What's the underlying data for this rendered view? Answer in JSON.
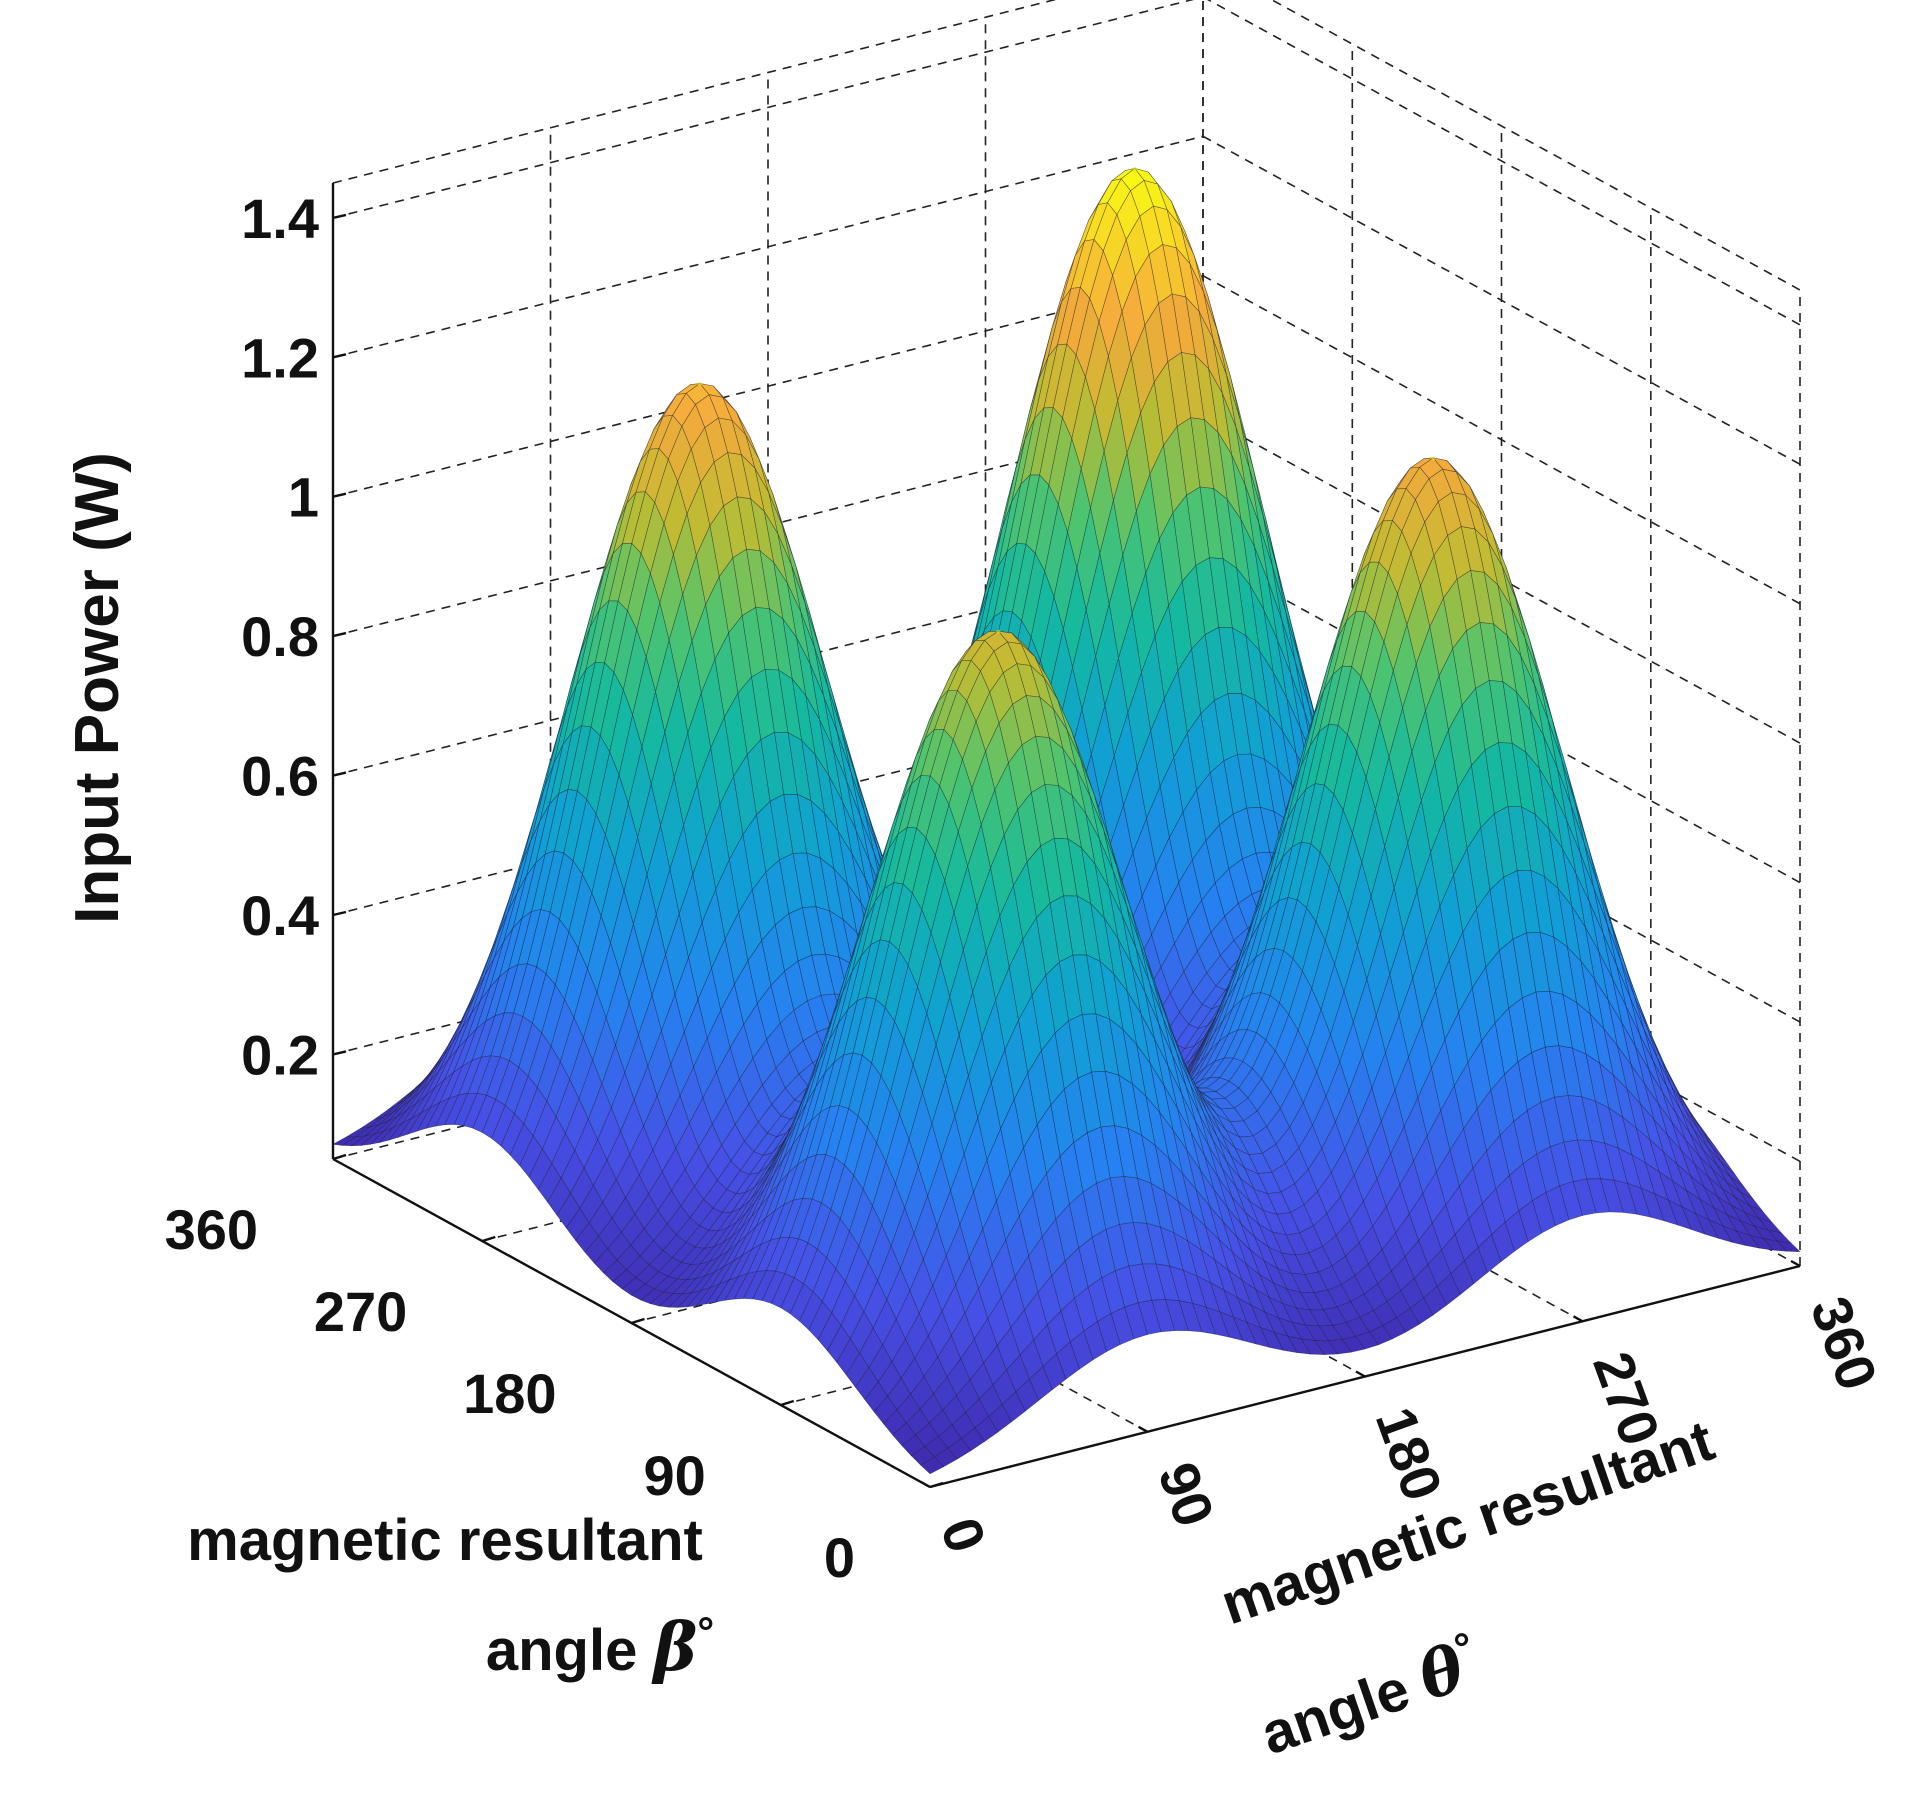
{
  "chart_data": {
    "type": "surface",
    "title": "",
    "zlabel": "Input Power (W)",
    "xlabel": {
      "line1": "magnetic resultant",
      "line2_prefix": "angle ",
      "line2_symbol": "θ",
      "line2_suffix": "°"
    },
    "ylabel": {
      "line1": "magnetic resultant",
      "line2_prefix": "angle ",
      "line2_symbol": "β",
      "line2_suffix": "°"
    },
    "x_ticks": [
      "0",
      "90",
      "180",
      "270",
      "360"
    ],
    "y_ticks": [
      "0",
      "90",
      "180",
      "270",
      "360"
    ],
    "z_ticks": [
      "0.2",
      "0.4",
      "0.6",
      "0.8",
      "1",
      "1.2",
      "1.4"
    ],
    "x_tick_values": [
      0,
      90,
      180,
      270,
      360
    ],
    "y_tick_values": [
      0,
      90,
      180,
      270,
      360
    ],
    "z_tick_values": [
      0.2,
      0.4,
      0.6,
      0.8,
      1.0,
      1.2,
      1.4
    ],
    "xlim": [
      0,
      360
    ],
    "ylim": [
      0,
      360
    ],
    "zlim": [
      0.05,
      1.45
    ],
    "grid": true,
    "colormap": "parula",
    "baseline": 0.05,
    "peaks": [
      {
        "name": "peak-front",
        "theta": 90,
        "beta": 90,
        "value": 1.08
      },
      {
        "name": "peak-left",
        "theta": 90,
        "beta": 270,
        "value": 1.2
      },
      {
        "name": "peak-back",
        "theta": 270,
        "beta": 270,
        "value": 1.35
      },
      {
        "name": "peak-right",
        "theta": 270,
        "beta": 90,
        "value": 1.17
      }
    ],
    "peak_width_deg": 45
  }
}
